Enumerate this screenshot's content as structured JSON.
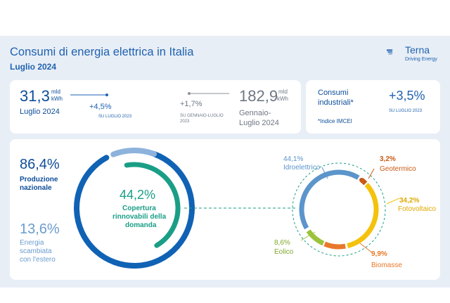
{
  "header": {
    "title": "Consumi di energia elettrica in Italia",
    "subtitle": "Luglio 2024",
    "logo_name": "Terna",
    "logo_tagline": "Driving Energy"
  },
  "kpi_month": {
    "value": "31,3",
    "unit_1": "mld",
    "unit_2": "kWh",
    "period": "Luglio 2024",
    "change": "+4,5%",
    "change_ref": "SU LUGLIO 2023"
  },
  "kpi_ytd": {
    "change": "+1,7%",
    "change_ref_1": "SU GENNAIO-LUGLIO",
    "change_ref_2": "2023",
    "value": "182,9",
    "unit_1": "mld",
    "unit_2": "kWh",
    "period_1": "Gennaio-",
    "period_2": "Luglio 2024"
  },
  "kpi_industrial": {
    "label_1": "Consumi",
    "label_2": "industriali*",
    "change": "+3,5%",
    "change_ref": "SU LUGLIO 2023",
    "footnote": "*Indice IMCEI"
  },
  "production": {
    "national_pct": "86,4%",
    "national_label_1": "Produzione",
    "national_label_2": "nazionale",
    "exchanged_pct": "13,6%",
    "exchanged_label_1": "Energia",
    "exchanged_label_2": "scambiata",
    "exchanged_label_3": "con l'estero"
  },
  "renewables": {
    "coverage_pct": "44,2%",
    "coverage_label_1": "Copertura",
    "coverage_label_2": "rinnovabili della",
    "coverage_label_3": "domanda"
  },
  "sources": [
    {
      "name": "Idroelettrico",
      "pct": "44,1%",
      "color": "#5b95cb"
    },
    {
      "name": "Geotermico",
      "pct": "3,2%",
      "color": "#c85a16"
    },
    {
      "name": "Fotovoltaico",
      "pct": "34,2%",
      "color": "#f4c20d"
    },
    {
      "name": "Biomasse",
      "pct": "9,9%",
      "color": "#e8782a"
    },
    {
      "name": "Eolico",
      "pct": "8,6%",
      "color": "#9cc33c"
    }
  ],
  "colors": {
    "brand_blue": "#1f62b0",
    "dark_blue": "#0d4d99",
    "light_blue": "#7ea8d8",
    "teal": "#1a9e86",
    "background": "#e8eef6"
  }
}
